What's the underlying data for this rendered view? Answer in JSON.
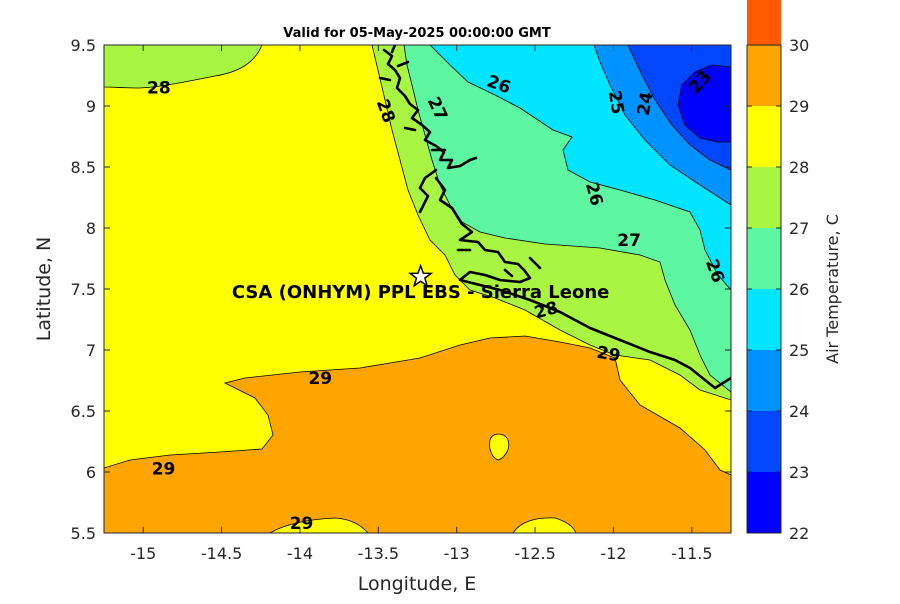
{
  "chart_data": {
    "type": "heatmap",
    "title": "Valid for 05-May-2025 00:00:00 GMT",
    "xlabel": "Longitude, E",
    "ylabel": "Latitude, N",
    "colorbar_label": "Air Temperature, C",
    "xlim": [
      -15.25,
      -11.25
    ],
    "ylim": [
      5.5,
      9.5
    ],
    "x_ticks": [
      -15,
      -14.5,
      -14,
      -13.5,
      -13,
      -12.5,
      -12,
      -11.5
    ],
    "x_tick_labels": [
      "-15",
      "-14.5",
      "-14",
      "-13.5",
      "-13",
      "-12.5",
      "-12",
      "-11.5"
    ],
    "y_ticks": [
      5.5,
      6,
      6.5,
      7,
      7.5,
      8,
      8.5,
      9,
      9.5
    ],
    "y_tick_labels": [
      "5.5",
      "6",
      "6.5",
      "7",
      "7.5",
      "8",
      "8.5",
      "9",
      "9.5"
    ],
    "colorbar": {
      "min": 22,
      "max": 30,
      "ticks": [
        22,
        23,
        24,
        25,
        26,
        27,
        28,
        29,
        30
      ],
      "tick_labels": [
        "22",
        "23",
        "24",
        "25",
        "26",
        "27",
        "28",
        "29",
        "30"
      ],
      "colors": [
        "#0000ff",
        "#0047ff",
        "#0093ff",
        "#00e5ff",
        "#5cf7a0",
        "#a8f542",
        "#ffff00",
        "#ffa500",
        "#ff5a00"
      ]
    },
    "contour_labels": [
      {
        "text": "28",
        "lon": -14.9,
        "lat": 9.15,
        "rot": 0
      },
      {
        "text": "28",
        "lon": -13.45,
        "lat": 8.96,
        "rot": 70
      },
      {
        "text": "27",
        "lon": -13.12,
        "lat": 8.98,
        "rot": 65
      },
      {
        "text": "26",
        "lon": -12.73,
        "lat": 9.18,
        "rot": 20
      },
      {
        "text": "25",
        "lon": -11.98,
        "lat": 9.03,
        "rot": 80
      },
      {
        "text": "24",
        "lon": -11.8,
        "lat": 9.02,
        "rot": -80
      },
      {
        "text": "23",
        "lon": -11.45,
        "lat": 9.2,
        "rot": -50
      },
      {
        "text": "26",
        "lon": -12.12,
        "lat": 8.28,
        "rot": 75
      },
      {
        "text": "27",
        "lon": -11.9,
        "lat": 7.9,
        "rot": 0
      },
      {
        "text": "26",
        "lon": -11.35,
        "lat": 7.65,
        "rot": 70
      },
      {
        "text": "28",
        "lon": -12.43,
        "lat": 7.33,
        "rot": -15
      },
      {
        "text": "29",
        "lon": -12.03,
        "lat": 6.97,
        "rot": 10
      },
      {
        "text": "29",
        "lon": -13.87,
        "lat": 6.77,
        "rot": 0
      },
      {
        "text": "29",
        "lon": -14.87,
        "lat": 6.03,
        "rot": 0
      },
      {
        "text": "29",
        "lon": -13.99,
        "lat": 5.58,
        "rot": 0
      }
    ],
    "station": {
      "name": "CSA (ONHYM) PPL EBS  - Sierra Leone",
      "lon": -13.23,
      "lat": 7.6
    }
  }
}
